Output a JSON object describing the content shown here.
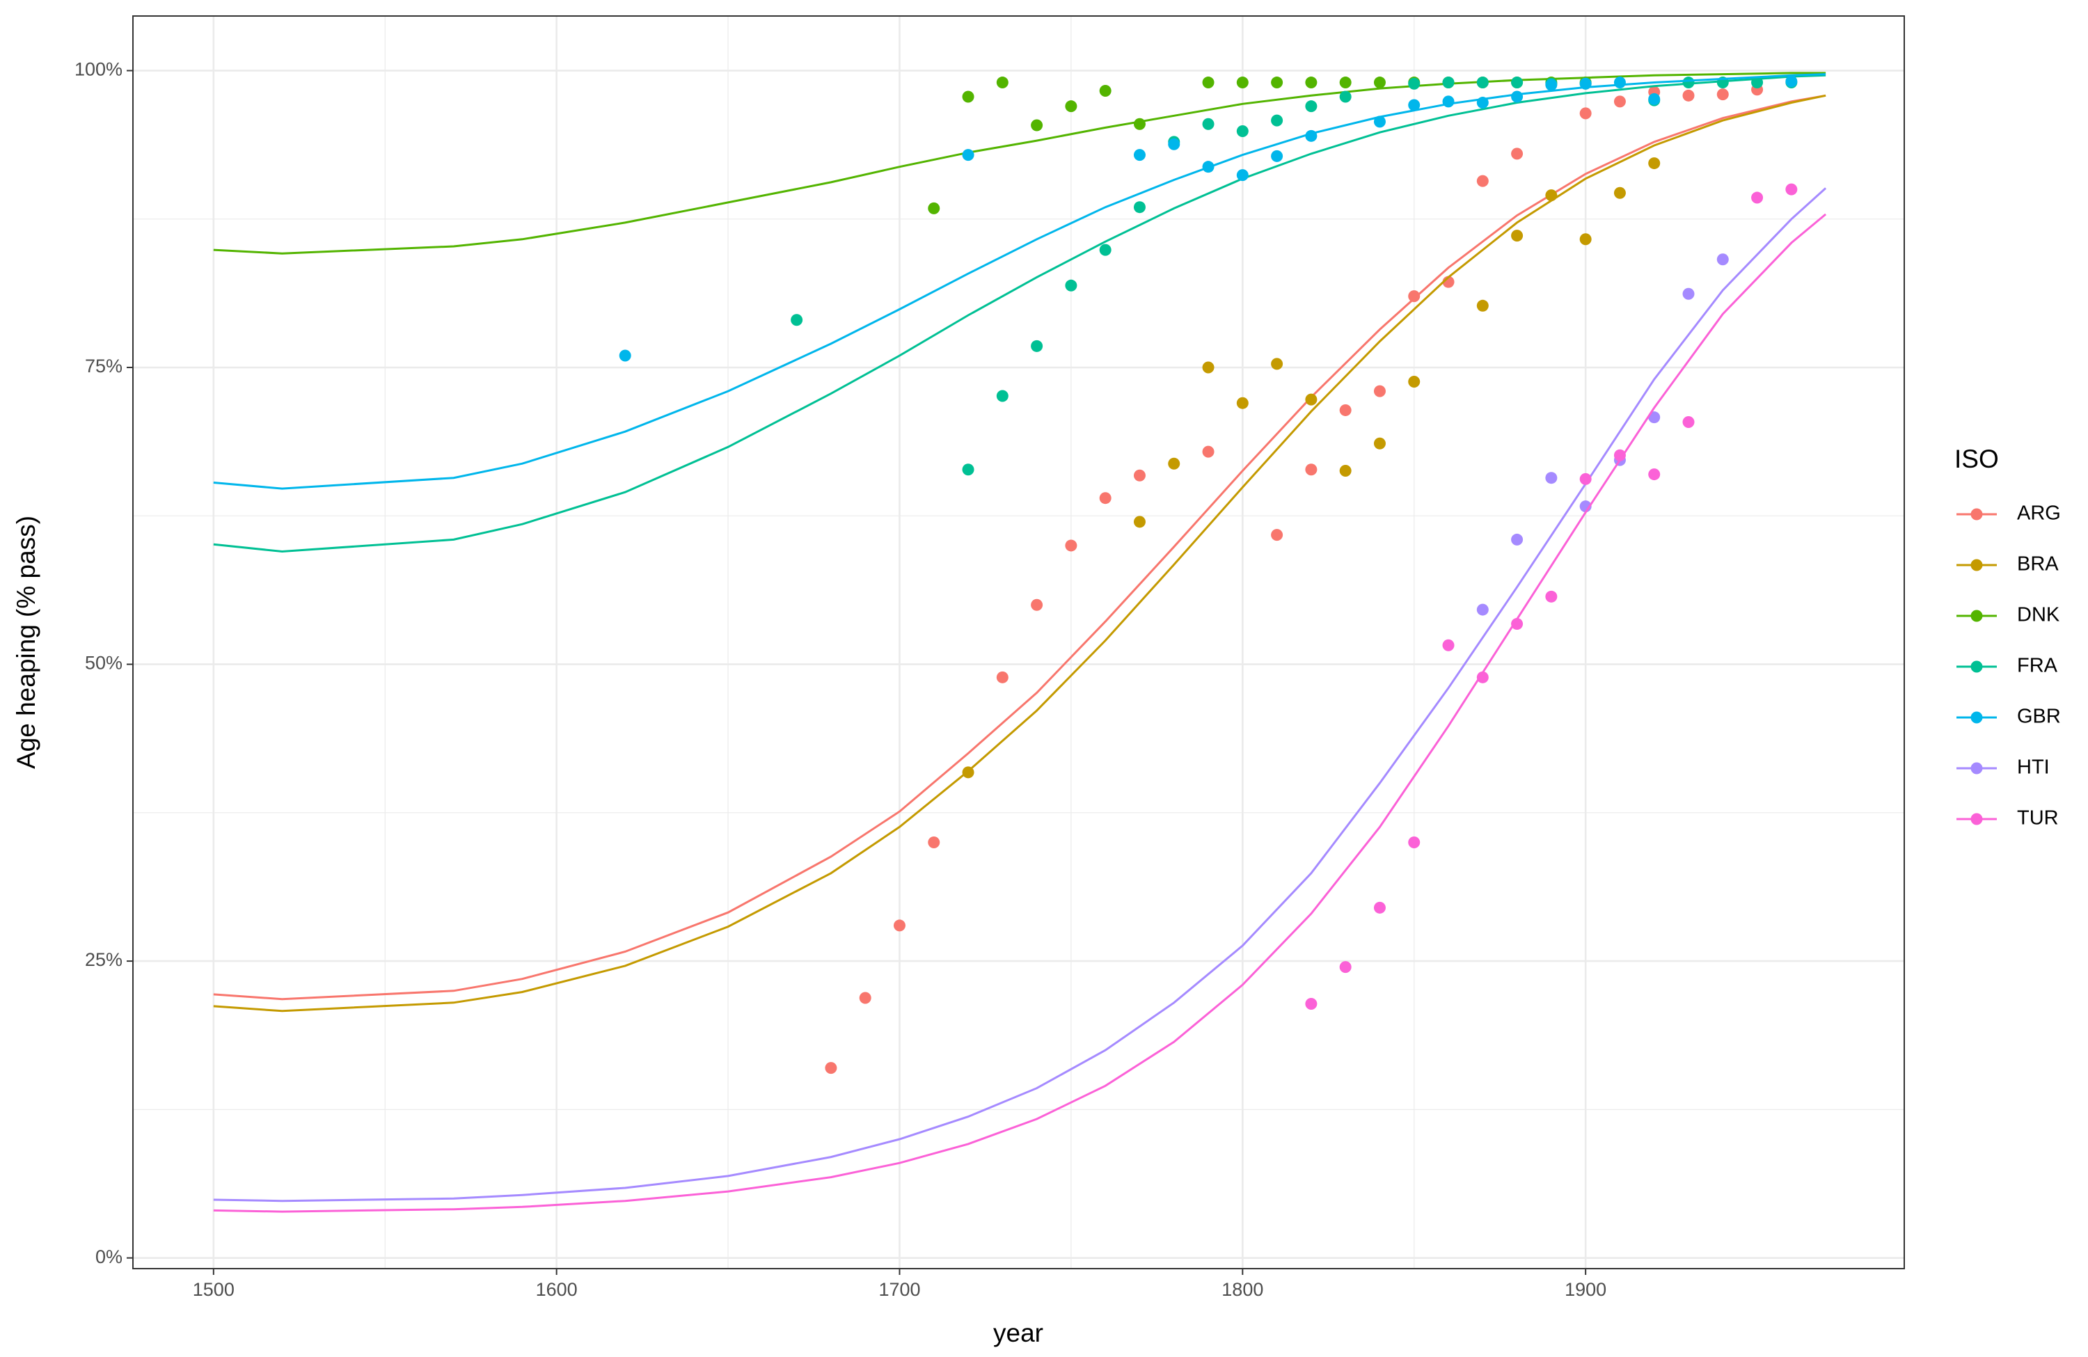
{
  "chart_data": {
    "type": "scatter",
    "x_label": "year",
    "y_label": "Age heaping (% pass)",
    "legend_title": "ISO",
    "legend": "right",
    "grid": true,
    "xlim": [
      1476.5,
      1992.9
    ],
    "xticks": [
      1500,
      1600,
      1700,
      1800,
      1900
    ],
    "ylim": [
      -0.9,
      104.6
    ],
    "yticks": [
      {
        "value": 0,
        "label": "0%"
      },
      {
        "value": 25,
        "label": "25%"
      },
      {
        "value": 50,
        "label": "50%"
      },
      {
        "value": 75,
        "label": "75%"
      },
      {
        "value": 100,
        "label": "100%"
      }
    ],
    "fit_x": [
      1500,
      1520,
      1570,
      1590,
      1620,
      1650,
      1680,
      1700,
      1720,
      1740,
      1760,
      1780,
      1800,
      1820,
      1840,
      1860,
      1880,
      1900,
      1920,
      1940,
      1960,
      1970
    ],
    "series": [
      {
        "name": "ARG",
        "color": "#F8766D",
        "x": [
          1680,
          1690,
          1700,
          1710,
          1730,
          1740,
          1750,
          1760,
          1770,
          1790,
          1810,
          1820,
          1830,
          1840,
          1850,
          1860,
          1870,
          1880,
          1900,
          1910,
          1920,
          1930,
          1940,
          1950
        ],
        "values": [
          16.0,
          21.9,
          28.0,
          35.0,
          48.9,
          55.0,
          60.0,
          64.0,
          65.9,
          67.9,
          60.9,
          66.4,
          71.4,
          73.0,
          81.0,
          82.2,
          90.7,
          93.0,
          96.4,
          97.4,
          98.2,
          97.9,
          98.0,
          98.4
        ],
        "fit_values": [
          22.2,
          21.8,
          22.5,
          23.5,
          25.8,
          29.1,
          33.8,
          37.6,
          42.5,
          47.6,
          53.6,
          59.9,
          66.3,
          72.5,
          78.2,
          83.4,
          87.8,
          91.3,
          94.0,
          96.0,
          97.4,
          97.9
        ]
      },
      {
        "name": "BRA",
        "color": "#C49A00",
        "x": [
          1720,
          1770,
          1780,
          1790,
          1800,
          1810,
          1820,
          1830,
          1840,
          1850,
          1870,
          1880,
          1890,
          1900,
          1910,
          1920
        ],
        "values": [
          40.9,
          62.0,
          66.9,
          75.0,
          72.0,
          75.3,
          72.3,
          66.3,
          68.6,
          73.8,
          80.2,
          86.1,
          89.5,
          85.8,
          89.7,
          92.2
        ],
        "fit_values": [
          21.2,
          20.8,
          21.5,
          22.4,
          24.6,
          27.9,
          32.4,
          36.3,
          41.0,
          46.1,
          52.0,
          58.4,
          64.9,
          71.3,
          77.2,
          82.6,
          87.2,
          90.9,
          93.7,
          95.8,
          97.3,
          97.9
        ]
      },
      {
        "name": "DNK",
        "color": "#53B400",
        "x": [
          1710,
          1720,
          1730,
          1740,
          1750,
          1760,
          1770,
          1790,
          1800,
          1810,
          1820,
          1830,
          1840,
          1850,
          1860,
          1870,
          1880,
          1890,
          1900
        ],
        "values": [
          88.4,
          97.8,
          99.0,
          95.4,
          97.0,
          98.3,
          95.5,
          99.0,
          99.0,
          99.0,
          99.0,
          99.0,
          99.0,
          99.0,
          99.0,
          99.0,
          99.0,
          99.0,
          99.0
        ],
        "fit_values": [
          84.9,
          84.6,
          85.2,
          85.8,
          87.2,
          88.9,
          90.6,
          91.9,
          93.1,
          94.1,
          95.2,
          96.2,
          97.2,
          97.9,
          98.5,
          98.9,
          99.2,
          99.4,
          99.6,
          99.7,
          99.8,
          99.8
        ]
      },
      {
        "name": "FRA",
        "color": "#00C094",
        "x": [
          1670,
          1720,
          1730,
          1740,
          1750,
          1760,
          1770,
          1780,
          1790,
          1800,
          1810,
          1820,
          1830,
          1850,
          1860,
          1870,
          1880,
          1890,
          1900,
          1920,
          1930,
          1940,
          1950,
          1960
        ],
        "values": [
          79.0,
          66.4,
          72.6,
          76.8,
          81.9,
          84.9,
          88.5,
          94.0,
          95.5,
          94.9,
          95.8,
          97.0,
          97.8,
          98.9,
          99.0,
          99.0,
          99.0,
          98.9,
          98.9,
          97.5,
          99.0,
          99.0,
          99.0,
          99.0
        ],
        "fit_values": [
          60.1,
          59.5,
          60.5,
          61.8,
          64.5,
          68.3,
          72.8,
          76.0,
          79.4,
          82.6,
          85.6,
          88.4,
          90.9,
          93.0,
          94.8,
          96.2,
          97.3,
          98.1,
          98.7,
          99.1,
          99.5,
          99.6
        ]
      },
      {
        "name": "GBR",
        "color": "#00B6EB",
        "x": [
          1620,
          1720,
          1770,
          1780,
          1790,
          1800,
          1810,
          1820,
          1840,
          1850,
          1860,
          1870,
          1880,
          1890,
          1900,
          1910,
          1920,
          1960
        ],
        "values": [
          76.0,
          92.9,
          92.9,
          93.8,
          91.9,
          91.2,
          92.8,
          94.5,
          95.7,
          97.1,
          97.4,
          97.3,
          97.8,
          98.8,
          98.9,
          99.0,
          97.6,
          99.1
        ],
        "fit_values": [
          65.3,
          64.8,
          65.7,
          66.9,
          69.6,
          73.0,
          77.0,
          79.9,
          82.9,
          85.8,
          88.5,
          90.8,
          92.9,
          94.7,
          96.1,
          97.2,
          98.0,
          98.6,
          99.0,
          99.3,
          99.6,
          99.7
        ]
      },
      {
        "name": "HTI",
        "color": "#A58AFF",
        "x": [
          1870,
          1880,
          1890,
          1900,
          1910,
          1920,
          1930,
          1940
        ],
        "values": [
          54.6,
          60.5,
          65.7,
          63.3,
          67.2,
          70.8,
          81.2,
          84.1
        ],
        "fit_values": [
          4.9,
          4.8,
          5.0,
          5.3,
          5.9,
          6.9,
          8.5,
          10.0,
          11.9,
          14.3,
          17.5,
          21.5,
          26.3,
          32.4,
          40.0,
          48.0,
          56.5,
          65.2,
          74.0,
          81.5,
          87.5,
          90.1
        ]
      },
      {
        "name": "TUR",
        "color": "#FB61D7",
        "x": [
          1820,
          1830,
          1840,
          1850,
          1860,
          1870,
          1880,
          1890,
          1900,
          1910,
          1920,
          1930,
          1950,
          1960
        ],
        "values": [
          21.4,
          24.5,
          29.5,
          35.0,
          51.6,
          48.9,
          53.4,
          55.7,
          65.6,
          67.6,
          66.0,
          70.4,
          89.3,
          90.0
        ],
        "fit_values": [
          4.0,
          3.9,
          4.1,
          4.3,
          4.8,
          5.6,
          6.8,
          8.0,
          9.6,
          11.7,
          14.5,
          18.2,
          23.0,
          29.0,
          36.3,
          44.8,
          53.8,
          62.8,
          71.6,
          79.5,
          85.5,
          87.9
        ]
      }
    ]
  }
}
